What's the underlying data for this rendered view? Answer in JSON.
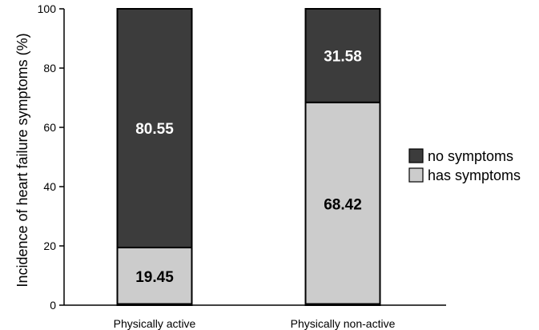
{
  "chart_data": {
    "type": "bar",
    "stacked": true,
    "percent_stacked": true,
    "categories": [
      "Physically active",
      "Physically non-active"
    ],
    "series": [
      {
        "name": "has symptoms",
        "values": [
          19.45,
          68.42
        ],
        "color": "#cccccc",
        "label_color": "#000000"
      },
      {
        "name": "no symptoms",
        "values": [
          80.55,
          31.58
        ],
        "color": "#3c3c3c",
        "label_color": "#ffffff"
      }
    ],
    "data_labels": [
      [
        "19.45",
        "68.42"
      ],
      [
        "80.55",
        "31.58"
      ]
    ],
    "ylabel": "Incidence of heart failure symptoms (%)",
    "xlabel": "",
    "ylim": [
      0,
      100
    ],
    "yticks": [
      0,
      20,
      40,
      60,
      80,
      100
    ],
    "grid": false,
    "legend": {
      "position": "right",
      "order": [
        "no symptoms",
        "has symptoms"
      ]
    }
  }
}
